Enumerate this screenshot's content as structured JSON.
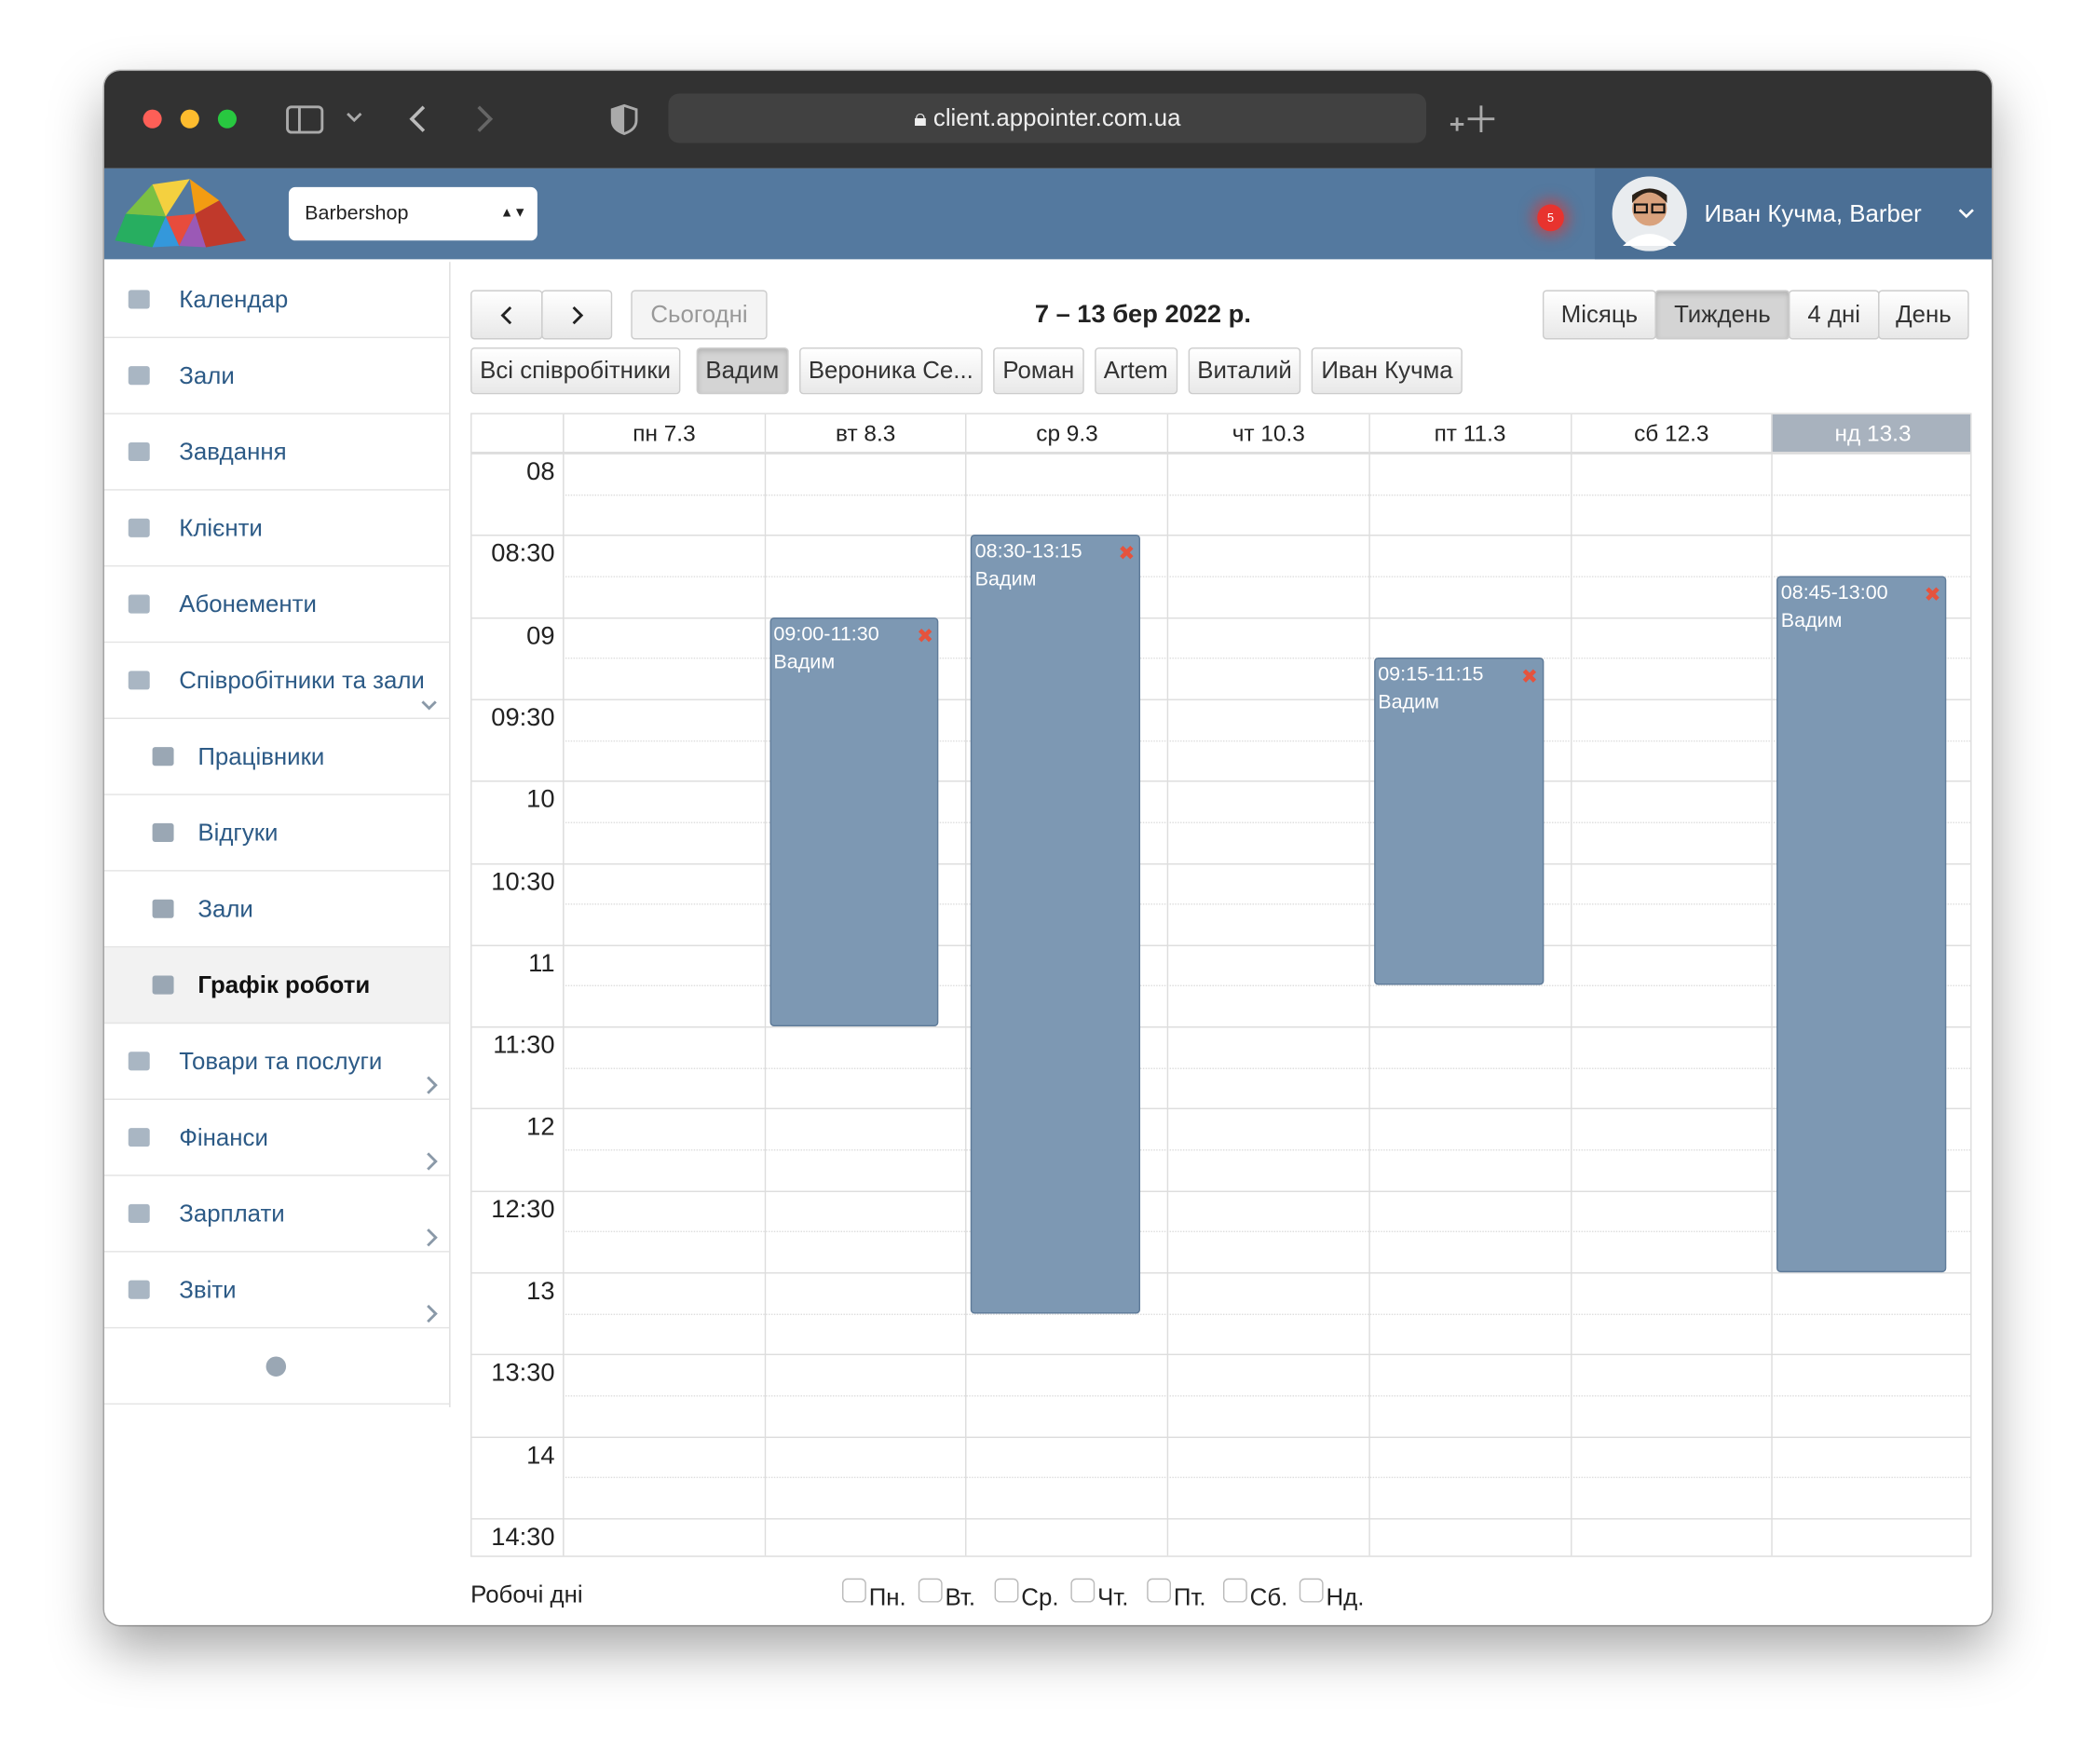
{
  "browser": {
    "url": "client.appointer.com.ua"
  },
  "header": {
    "business": "Barbershop",
    "notifications": "5",
    "user": "Иван Кучма, Barber"
  },
  "sidebar": {
    "items": [
      {
        "label": "Календар"
      },
      {
        "label": "Зали"
      },
      {
        "label": "Завдання"
      },
      {
        "label": "Клієнти"
      },
      {
        "label": "Абонементи"
      },
      {
        "label": "Співробітники та зали",
        "arrow": "down"
      },
      {
        "label": "Працівники",
        "sub": true
      },
      {
        "label": "Відгуки",
        "sub": true
      },
      {
        "label": "Зали",
        "sub": true
      },
      {
        "label": "Графік роботи",
        "sub": true,
        "active": true
      },
      {
        "label": "Товари та послуги",
        "arrow": "right"
      },
      {
        "label": "Фінанси",
        "arrow": "right"
      },
      {
        "label": "Зарплати",
        "arrow": "right"
      },
      {
        "label": "Звіти",
        "arrow": "right"
      }
    ]
  },
  "calendar": {
    "today_button": "Сьогодні",
    "range": "7 – 13 бер 2022 р.",
    "views": [
      "Місяць",
      "Тиждень",
      "4 дні",
      "День"
    ],
    "active_view": 1,
    "staff": [
      "Всі співробітники",
      "Вадим",
      "Вероника Се...",
      "Роман",
      "Artem",
      "Виталий",
      "Иван Кучма"
    ],
    "active_staff": 1,
    "days": [
      "пн 7.3",
      "вт 8.3",
      "ср 9.3",
      "чт 10.3",
      "пт 11.3",
      "сб 12.3",
      "нд 13.3"
    ],
    "today_index": 6,
    "times": [
      "08",
      "08:30",
      "09",
      "09:30",
      "10",
      "10:30",
      "11",
      "11:30",
      "12",
      "12:30",
      "13",
      "13:30",
      "14",
      "14:30"
    ],
    "events": [
      {
        "day": 1,
        "time": "09:00-11:30",
        "name": "Вадим"
      },
      {
        "day": 2,
        "time": "08:30-13:15",
        "name": "Вадим"
      },
      {
        "day": 4,
        "time": "09:15-11:15",
        "name": "Вадим"
      },
      {
        "day": 6,
        "time": "08:45-13:00",
        "name": "Вадим"
      }
    ]
  },
  "working_days": {
    "label": "Робочі дні",
    "days": [
      "Пн.",
      "Вт.",
      "Ср.",
      "Чт.",
      "Пт.",
      "Сб.",
      "Нд."
    ]
  }
}
